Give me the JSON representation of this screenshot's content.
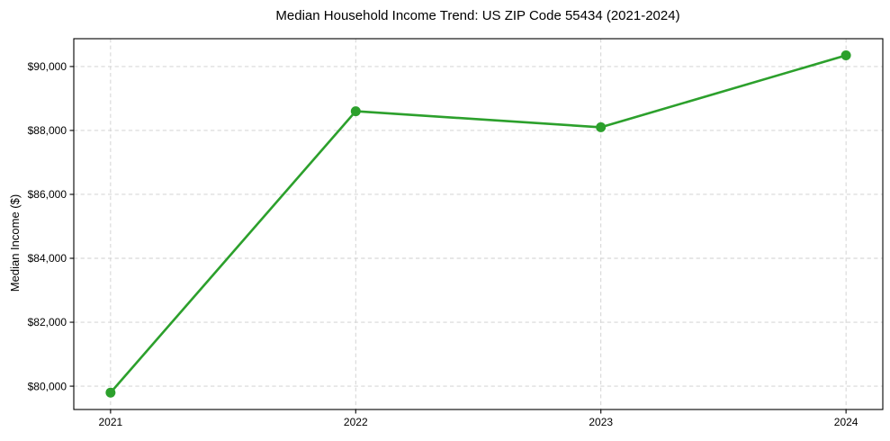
{
  "page": {
    "background": "#ffffff"
  },
  "chart_data": {
    "type": "line",
    "title": "Median Household Income Trend: US ZIP Code 55434 (2021-2024)",
    "xlabel": "",
    "ylabel": "Median Income ($)",
    "x": [
      2021,
      2022,
      2023,
      2024
    ],
    "x_tick_labels": [
      "2021",
      "2022",
      "2023",
      "2024"
    ],
    "series": [
      {
        "name": "Median household income",
        "values": [
          79800,
          88600,
          88100,
          90350
        ],
        "color": "#2ca02c",
        "marker": "circle",
        "marker_diameter": 11,
        "line_width": 2.6
      }
    ],
    "y_ticks": [
      80000,
      82000,
      84000,
      86000,
      88000,
      90000
    ],
    "y_tick_labels": [
      "$80,000",
      "$82,000",
      "$84,000",
      "$86,000",
      "$88,000",
      "$90,000"
    ],
    "xlim": [
      2020.85,
      2024.15
    ],
    "ylim": [
      79270,
      90870
    ],
    "grid": true,
    "grid_style": "dashed",
    "legend": "none"
  },
  "style": {
    "accent_green": "#2ca02c",
    "grid_color": "#cecece",
    "axis_color": "#000000",
    "text_color": "#000000",
    "background": "#ffffff"
  }
}
